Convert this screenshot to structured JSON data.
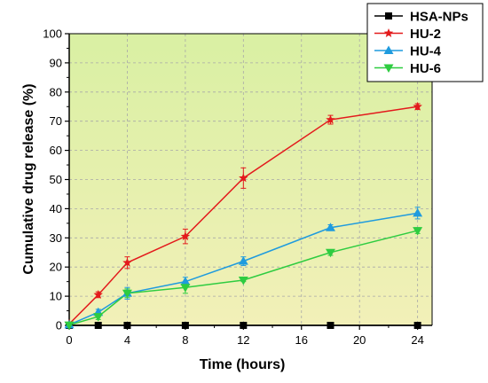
{
  "chart_data": {
    "type": "line",
    "xlabel": "Time (hours)",
    "ylabel": "Cumulative drug release (%)",
    "xlim": [
      0,
      25
    ],
    "ylim": [
      0,
      100
    ],
    "x_ticks": [
      0,
      4,
      8,
      12,
      16,
      20,
      24
    ],
    "y_ticks": [
      0,
      10,
      20,
      30,
      40,
      50,
      60,
      70,
      80,
      90,
      100
    ],
    "grid": "dashed vertical and horizontal",
    "legend_position": "top-right",
    "background_gradient": [
      "#d9f0a3",
      "#f2f0b8"
    ],
    "series": [
      {
        "name": "HSA-NPs",
        "marker": "square",
        "color": "#000000",
        "x": [
          0,
          2,
          4,
          8,
          12,
          18,
          24
        ],
        "y": [
          0,
          0,
          0,
          0,
          0,
          0,
          0
        ],
        "error": [
          0,
          0,
          0,
          0,
          0,
          0,
          0
        ]
      },
      {
        "name": "HU-2",
        "marker": "star",
        "color": "#e31a1c",
        "x": [
          0,
          2,
          4,
          8,
          12,
          18,
          24
        ],
        "y": [
          0.5,
          10.5,
          21.5,
          30.5,
          50.5,
          70.5,
          75
        ],
        "error": [
          0.3,
          1,
          2,
          2.5,
          3.5,
          1.5,
          1
        ]
      },
      {
        "name": "HU-4",
        "marker": "triangle-up",
        "color": "#1f9bde",
        "x": [
          0,
          2,
          4,
          8,
          12,
          18,
          24
        ],
        "y": [
          0.2,
          4.5,
          11,
          15,
          22,
          33.5,
          38.5
        ],
        "error": [
          0.2,
          1,
          2,
          1.5,
          1.5,
          1,
          2
        ]
      },
      {
        "name": "HU-6",
        "marker": "triangle-down",
        "color": "#2ecc40",
        "x": [
          0,
          2,
          4,
          8,
          12,
          18,
          24
        ],
        "y": [
          0.1,
          3,
          11,
          13,
          15.5,
          25,
          32.5
        ],
        "error": [
          0.1,
          1,
          1.5,
          2,
          0.5,
          1,
          1
        ]
      }
    ]
  }
}
